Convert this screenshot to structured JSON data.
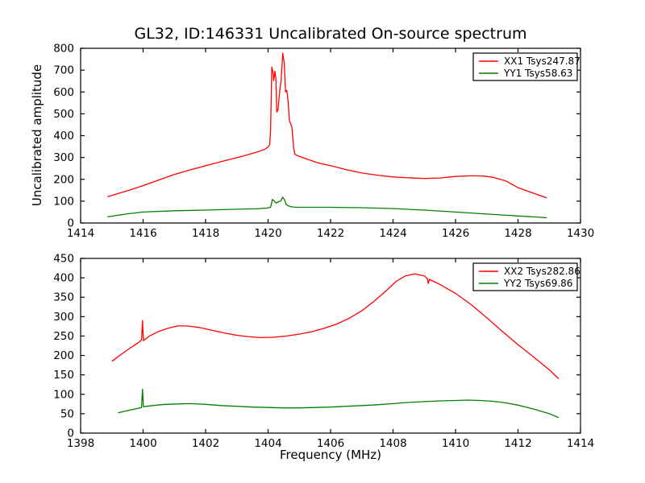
{
  "title": "GL32, ID:146331 Uncalibrated On-source spectrum",
  "colors": {
    "xx_line": "#ff0000",
    "yy_line": "#008000",
    "axis": "#000000",
    "background": "#ffffff"
  },
  "chart_data": [
    {
      "type": "line",
      "title": "",
      "xlabel": "",
      "ylabel": "Uncalibrated amplitude",
      "xlim": [
        1414,
        1430
      ],
      "ylim": [
        0,
        800
      ],
      "xticks": [
        1414,
        1416,
        1418,
        1420,
        1422,
        1424,
        1426,
        1428,
        1430
      ],
      "yticks": [
        0,
        100,
        200,
        300,
        400,
        500,
        600,
        700,
        800
      ],
      "grid": false,
      "legend_position": "upper right",
      "series": [
        {
          "name": "XX1 Tsys247.87",
          "color": "#ff0000",
          "points": [
            [
              1414.86,
              120
            ],
            [
              1415.2,
              135
            ],
            [
              1415.6,
              152
            ],
            [
              1416,
              171
            ],
            [
              1416.5,
              197
            ],
            [
              1417,
              222
            ],
            [
              1417.5,
              243
            ],
            [
              1418,
              262
            ],
            [
              1418.5,
              281
            ],
            [
              1419,
              299
            ],
            [
              1419.4,
              315
            ],
            [
              1419.7,
              327
            ],
            [
              1419.9,
              338
            ],
            [
              1420.0,
              348
            ],
            [
              1420.05,
              358
            ],
            [
              1420.08,
              420
            ],
            [
              1420.12,
              714
            ],
            [
              1420.16,
              688
            ],
            [
              1420.18,
              652
            ],
            [
              1420.22,
              695
            ],
            [
              1420.25,
              660
            ],
            [
              1420.28,
              508
            ],
            [
              1420.32,
              520
            ],
            [
              1420.36,
              585
            ],
            [
              1420.42,
              660
            ],
            [
              1420.47,
              778
            ],
            [
              1420.52,
              730
            ],
            [
              1420.56,
              600
            ],
            [
              1420.6,
              608
            ],
            [
              1420.64,
              560
            ],
            [
              1420.68,
              470
            ],
            [
              1420.72,
              455
            ],
            [
              1420.76,
              440
            ],
            [
              1420.79,
              395
            ],
            [
              1420.82,
              340
            ],
            [
              1420.86,
              315
            ],
            [
              1420.95,
              308
            ],
            [
              1421.2,
              295
            ],
            [
              1421.6,
              275
            ],
            [
              1422,
              263
            ],
            [
              1422.5,
              244
            ],
            [
              1423,
              229
            ],
            [
              1423.5,
              219
            ],
            [
              1424,
              211
            ],
            [
              1424.5,
              207
            ],
            [
              1425,
              204
            ],
            [
              1425.5,
              206
            ],
            [
              1426,
              213
            ],
            [
              1426.5,
              216
            ],
            [
              1426.9,
              215
            ],
            [
              1427.2,
              209
            ],
            [
              1427.6,
              193
            ],
            [
              1428,
              162
            ],
            [
              1428.5,
              136
            ],
            [
              1428.92,
              115
            ]
          ]
        },
        {
          "name": "YY1 Tsys58.63",
          "color": "#008000",
          "points": [
            [
              1414.86,
              28
            ],
            [
              1415.5,
              42
            ],
            [
              1416,
              50
            ],
            [
              1417,
              56
            ],
            [
              1418,
              59
            ],
            [
              1419,
              63
            ],
            [
              1419.6,
              65
            ],
            [
              1419.95,
              68
            ],
            [
              1420.08,
              72
            ],
            [
              1420.14,
              108
            ],
            [
              1420.2,
              100
            ],
            [
              1420.26,
              91
            ],
            [
              1420.32,
              97
            ],
            [
              1420.4,
              100
            ],
            [
              1420.47,
              118
            ],
            [
              1420.52,
              108
            ],
            [
              1420.58,
              85
            ],
            [
              1420.65,
              78
            ],
            [
              1420.75,
              74
            ],
            [
              1420.9,
              72
            ],
            [
              1421.2,
              72
            ],
            [
              1422,
              72
            ],
            [
              1423,
              70
            ],
            [
              1424,
              66
            ],
            [
              1425,
              59
            ],
            [
              1426,
              50
            ],
            [
              1427,
              41
            ],
            [
              1428,
              32
            ],
            [
              1428.5,
              28
            ],
            [
              1428.92,
              24
            ]
          ]
        }
      ]
    },
    {
      "type": "line",
      "title": "",
      "xlabel": "Frequency (MHz)",
      "ylabel": "",
      "xlim": [
        1398,
        1414
      ],
      "ylim": [
        0,
        450
      ],
      "xticks": [
        1398,
        1400,
        1402,
        1404,
        1406,
        1408,
        1410,
        1412,
        1414
      ],
      "yticks": [
        0,
        50,
        100,
        150,
        200,
        250,
        300,
        350,
        400,
        450
      ],
      "grid": false,
      "legend_position": "upper right",
      "series": [
        {
          "name": "XX2 Tsys282.86",
          "color": "#ff0000",
          "points": [
            [
              1399.0,
              185
            ],
            [
              1399.3,
              203
            ],
            [
              1399.6,
              220
            ],
            [
              1399.85,
              233
            ],
            [
              1399.95,
              240
            ],
            [
              1399.98,
              290
            ],
            [
              1400.01,
              238
            ],
            [
              1400.2,
              250
            ],
            [
              1400.5,
              262
            ],
            [
              1400.8,
              270
            ],
            [
              1401.1,
              276
            ],
            [
              1401.4,
              276
            ],
            [
              1401.8,
              272
            ],
            [
              1402.2,
              265
            ],
            [
              1402.6,
              258
            ],
            [
              1403.0,
              252
            ],
            [
              1403.4,
              248
            ],
            [
              1403.8,
              246
            ],
            [
              1404.2,
              247
            ],
            [
              1404.6,
              250
            ],
            [
              1405.0,
              255
            ],
            [
              1405.4,
              261
            ],
            [
              1405.8,
              270
            ],
            [
              1406.2,
              281
            ],
            [
              1406.6,
              296
            ],
            [
              1407.0,
              315
            ],
            [
              1407.4,
              340
            ],
            [
              1407.8,
              368
            ],
            [
              1408.1,
              391
            ],
            [
              1408.4,
              405
            ],
            [
              1408.7,
              410
            ],
            [
              1409.0,
              405
            ],
            [
              1409.1,
              398
            ],
            [
              1409.13,
              385
            ],
            [
              1409.16,
              396
            ],
            [
              1409.5,
              383
            ],
            [
              1410.0,
              360
            ],
            [
              1410.5,
              331
            ],
            [
              1411.0,
              297
            ],
            [
              1411.5,
              262
            ],
            [
              1412.0,
              228
            ],
            [
              1412.5,
              196
            ],
            [
              1413.0,
              163
            ],
            [
              1413.3,
              140
            ]
          ]
        },
        {
          "name": "YY2 Tsys69.86",
          "color": "#008000",
          "points": [
            [
              1399.2,
              52
            ],
            [
              1399.5,
              58
            ],
            [
              1399.8,
              63
            ],
            [
              1399.95,
              66
            ],
            [
              1399.98,
              113
            ],
            [
              1400.01,
              68
            ],
            [
              1400.3,
              71
            ],
            [
              1400.7,
              74
            ],
            [
              1401.1,
              75
            ],
            [
              1401.5,
              76
            ],
            [
              1402.0,
              74
            ],
            [
              1402.5,
              71
            ],
            [
              1403.0,
              69
            ],
            [
              1403.5,
              67
            ],
            [
              1404.0,
              66
            ],
            [
              1404.5,
              65
            ],
            [
              1405.0,
              65
            ],
            [
              1405.5,
              66
            ],
            [
              1406.0,
              67
            ],
            [
              1406.5,
              69
            ],
            [
              1407.0,
              71
            ],
            [
              1407.5,
              73
            ],
            [
              1408.0,
              76
            ],
            [
              1408.5,
              79
            ],
            [
              1409.0,
              81
            ],
            [
              1409.5,
              83
            ],
            [
              1410.0,
              84
            ],
            [
              1410.4,
              85
            ],
            [
              1410.8,
              84
            ],
            [
              1411.2,
              82
            ],
            [
              1411.6,
              78
            ],
            [
              1412.0,
              72
            ],
            [
              1412.5,
              62
            ],
            [
              1413.0,
              50
            ],
            [
              1413.3,
              40
            ]
          ]
        }
      ]
    }
  ]
}
